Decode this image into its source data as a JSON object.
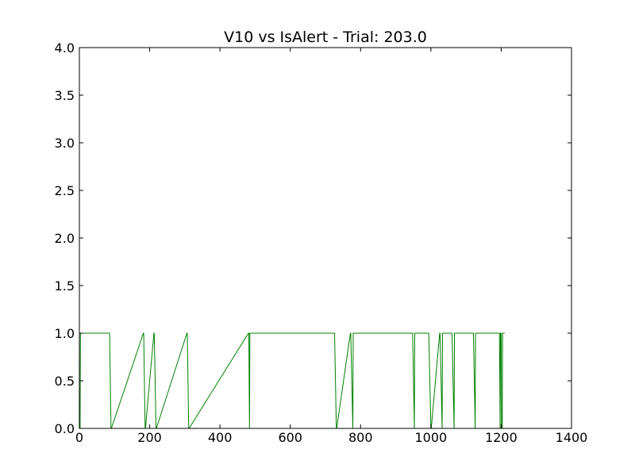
{
  "chart_data": {
    "type": "line",
    "title": "V10 vs IsAlert - Trial: 203.0",
    "xlabel": "",
    "ylabel": "",
    "xlim": [
      0,
      1400
    ],
    "ylim": [
      0.0,
      4.0
    ],
    "x_ticks": [
      0,
      200,
      400,
      600,
      800,
      1000,
      1200,
      1400
    ],
    "x_tick_labels": [
      "0",
      "200",
      "400",
      "600",
      "800",
      "1000",
      "1200",
      "1400"
    ],
    "y_ticks": [
      0.0,
      0.5,
      1.0,
      1.5,
      2.0,
      2.5,
      3.0,
      3.5,
      4.0
    ],
    "y_tick_labels": [
      "0.0",
      "0.5",
      "1.0",
      "1.5",
      "2.0",
      "2.5",
      "3.0",
      "3.5",
      "4.0"
    ],
    "grid": false,
    "legend": "none",
    "series": [
      {
        "color": "#008000",
        "x": [
          0,
          2,
          3,
          85,
          86,
          90,
          91,
          182,
          183,
          187,
          188,
          212,
          213,
          218,
          219,
          306,
          307,
          311,
          312,
          481,
          482,
          484,
          485,
          725,
          726,
          731,
          732,
          771,
          772,
          778,
          779,
          947,
          948,
          953,
          954,
          993,
          994,
          1000,
          1001,
          1025,
          1026,
          1032,
          1033,
          1059,
          1060,
          1066,
          1067,
          1120,
          1121,
          1126,
          1127,
          1194,
          1195,
          1197,
          1198,
          1200,
          1201,
          1203,
          1204,
          1210
        ],
        "y": [
          0,
          0,
          1,
          1,
          1,
          0,
          0,
          1,
          1,
          0,
          0,
          1,
          1,
          0,
          0,
          1,
          1,
          0,
          0,
          1,
          1,
          0,
          1,
          1,
          1,
          0,
          0,
          1,
          1,
          0,
          1,
          1,
          1,
          0,
          1,
          1,
          1,
          0,
          0,
          1,
          1,
          0,
          1,
          1,
          1,
          0,
          1,
          1,
          1,
          0,
          1,
          1,
          1,
          0,
          1,
          1,
          0,
          0,
          1,
          1
        ]
      }
    ]
  }
}
